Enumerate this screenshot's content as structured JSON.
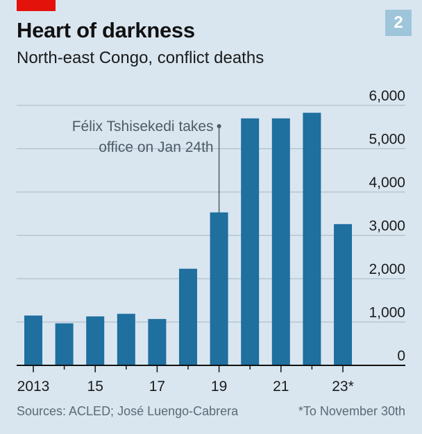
{
  "header": {
    "title": "Heart of darkness",
    "subtitle": "North-east Congo, conflict deaths",
    "badge": "2"
  },
  "footer": {
    "sources": "Sources: ACLED; José Luengo-Cabrera",
    "footnote": "*To November 30th"
  },
  "colors": {
    "bar": "#1f6f9f",
    "background": "#d9e6f0",
    "accent": "#e3120b",
    "badge": "#9ec5da"
  },
  "chart_data": {
    "type": "bar",
    "categories": [
      "2013",
      "2014",
      "2015",
      "2016",
      "2017",
      "2018",
      "2019",
      "2020",
      "2021",
      "2022",
      "2023"
    ],
    "values": [
      1150,
      970,
      1130,
      1190,
      1070,
      2230,
      3530,
      5700,
      5700,
      5830,
      3260
    ],
    "x_tick_labels": [
      "2013",
      "",
      "15",
      "",
      "17",
      "",
      "19",
      "",
      "21",
      "",
      "23*"
    ],
    "y_ticks": [
      0,
      1000,
      2000,
      3000,
      4000,
      5000,
      6000
    ],
    "y_tick_labels": [
      "0",
      "1,000",
      "2,000",
      "3,000",
      "4,000",
      "5,000",
      "6,000"
    ],
    "ylim": [
      0,
      6000
    ],
    "ylabel": "",
    "xlabel": "",
    "grid": true,
    "annotation": {
      "lines": [
        "Félix Tshisekedi takes",
        "office on Jan 24th"
      ],
      "category": "2019"
    }
  }
}
